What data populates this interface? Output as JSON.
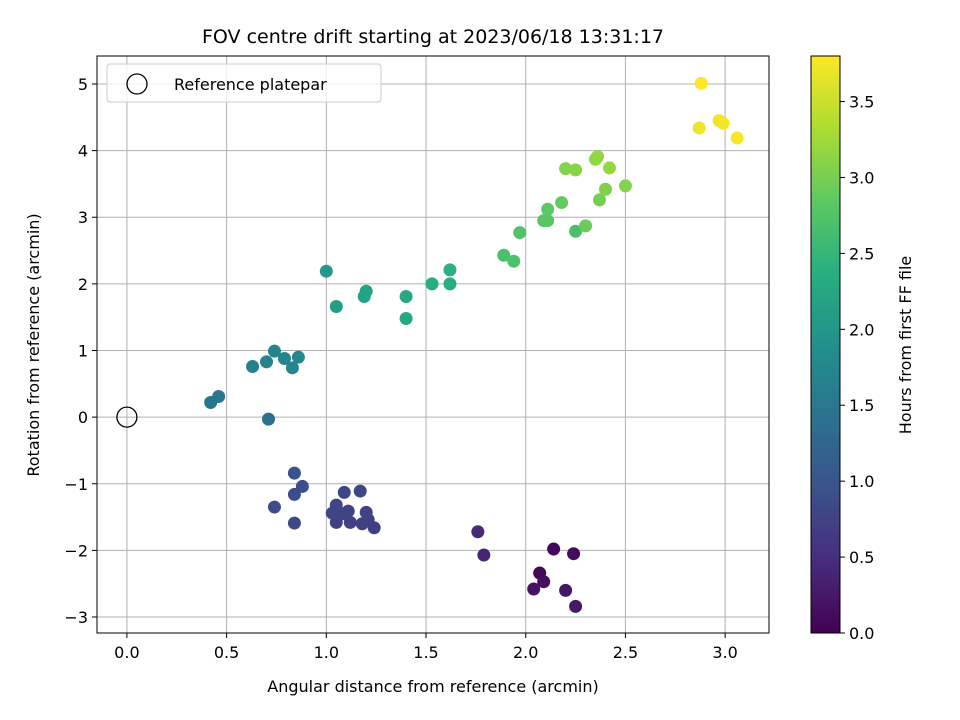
{
  "chart_data": {
    "type": "scatter",
    "title": "FOV centre drift starting at 2023/06/18 13:31:17",
    "xlabel": "Angular distance from reference (arcmin)",
    "ylabel": "Rotation from reference (arcmin)",
    "xlim": [
      -0.15,
      3.22
    ],
    "ylim": [
      -3.24,
      5.42
    ],
    "xticks": [
      0.0,
      0.5,
      1.0,
      1.5,
      2.0,
      2.5,
      3.0
    ],
    "xtick_labels": [
      "0.0",
      "0.5",
      "1.0",
      "1.5",
      "2.0",
      "2.5",
      "3.0"
    ],
    "yticks": [
      -3,
      -2,
      -1,
      0,
      1,
      2,
      3,
      4,
      5
    ],
    "ytick_labels": [
      "−3",
      "−2",
      "−1",
      "0",
      "1",
      "2",
      "3",
      "4",
      "5"
    ],
    "grid": true,
    "legend": {
      "label": "Reference platepar",
      "position": "upper left"
    },
    "reference_point": {
      "x": 0.0,
      "y": 0.0
    },
    "colorbar": {
      "label": "Hours from first FF file",
      "colormap": "viridis",
      "range": [
        0.0,
        3.8
      ],
      "ticks": [
        0.0,
        0.5,
        1.0,
        1.5,
        2.0,
        2.5,
        3.0,
        3.5
      ],
      "tick_labels": [
        "0.0",
        "0.5",
        "1.0",
        "1.5",
        "2.0",
        "2.5",
        "3.0",
        "3.5"
      ]
    },
    "points": [
      {
        "x": 2.07,
        "y": -2.34,
        "c": 0.05
      },
      {
        "x": 2.14,
        "y": -1.98,
        "c": 0.08
      },
      {
        "x": 2.24,
        "y": -2.05,
        "c": 0.12
      },
      {
        "x": 2.09,
        "y": -2.47,
        "c": 0.15
      },
      {
        "x": 2.04,
        "y": -2.58,
        "c": 0.2
      },
      {
        "x": 2.2,
        "y": -2.6,
        "c": 0.22
      },
      {
        "x": 2.25,
        "y": -2.84,
        "c": 0.25
      },
      {
        "x": 1.79,
        "y": -2.07,
        "c": 0.4
      },
      {
        "x": 1.76,
        "y": -1.72,
        "c": 0.45
      },
      {
        "x": 1.24,
        "y": -1.66,
        "c": 0.7
      },
      {
        "x": 1.18,
        "y": -1.6,
        "c": 0.72
      },
      {
        "x": 1.12,
        "y": -1.58,
        "c": 0.73
      },
      {
        "x": 1.05,
        "y": -1.58,
        "c": 0.74
      },
      {
        "x": 1.21,
        "y": -1.54,
        "c": 0.75
      },
      {
        "x": 1.2,
        "y": -1.43,
        "c": 0.76
      },
      {
        "x": 1.11,
        "y": -1.41,
        "c": 0.77
      },
      {
        "x": 1.08,
        "y": -1.45,
        "c": 0.78
      },
      {
        "x": 1.03,
        "y": -1.44,
        "c": 0.79
      },
      {
        "x": 1.05,
        "y": -1.32,
        "c": 0.8
      },
      {
        "x": 1.09,
        "y": -1.13,
        "c": 0.82
      },
      {
        "x": 1.17,
        "y": -1.11,
        "c": 0.83
      },
      {
        "x": 0.84,
        "y": -1.59,
        "c": 0.85
      },
      {
        "x": 0.74,
        "y": -1.35,
        "c": 0.88
      },
      {
        "x": 0.84,
        "y": -1.16,
        "c": 0.9
      },
      {
        "x": 0.88,
        "y": -1.04,
        "c": 0.92
      },
      {
        "x": 0.84,
        "y": -0.84,
        "c": 0.95
      },
      {
        "x": 0.71,
        "y": -0.03,
        "c": 1.4
      },
      {
        "x": 0.42,
        "y": 0.22,
        "c": 1.5
      },
      {
        "x": 0.46,
        "y": 0.31,
        "c": 1.52
      },
      {
        "x": 0.63,
        "y": 0.76,
        "c": 1.65
      },
      {
        "x": 0.7,
        "y": 0.83,
        "c": 1.68
      },
      {
        "x": 0.74,
        "y": 0.99,
        "c": 1.7
      },
      {
        "x": 0.79,
        "y": 0.88,
        "c": 1.72
      },
      {
        "x": 0.83,
        "y": 0.74,
        "c": 1.74
      },
      {
        "x": 0.86,
        "y": 0.9,
        "c": 1.76
      },
      {
        "x": 1.0,
        "y": 2.19,
        "c": 2.05
      },
      {
        "x": 1.05,
        "y": 1.66,
        "c": 2.15
      },
      {
        "x": 1.19,
        "y": 1.81,
        "c": 2.2
      },
      {
        "x": 1.2,
        "y": 1.89,
        "c": 2.22
      },
      {
        "x": 1.4,
        "y": 1.48,
        "c": 2.3
      },
      {
        "x": 1.4,
        "y": 1.81,
        "c": 2.32
      },
      {
        "x": 1.53,
        "y": 2.0,
        "c": 2.38
      },
      {
        "x": 1.62,
        "y": 2.0,
        "c": 2.4
      },
      {
        "x": 1.62,
        "y": 2.21,
        "c": 2.42
      },
      {
        "x": 1.89,
        "y": 2.43,
        "c": 2.7
      },
      {
        "x": 1.94,
        "y": 2.34,
        "c": 2.72
      },
      {
        "x": 1.97,
        "y": 2.77,
        "c": 2.75
      },
      {
        "x": 2.09,
        "y": 2.95,
        "c": 2.8
      },
      {
        "x": 2.11,
        "y": 2.95,
        "c": 2.82
      },
      {
        "x": 2.11,
        "y": 3.12,
        "c": 2.85
      },
      {
        "x": 2.18,
        "y": 3.22,
        "c": 2.9
      },
      {
        "x": 2.25,
        "y": 2.79,
        "c": 2.7
      },
      {
        "x": 2.3,
        "y": 2.87,
        "c": 2.95
      },
      {
        "x": 2.37,
        "y": 3.26,
        "c": 3.0
      },
      {
        "x": 2.4,
        "y": 3.42,
        "c": 3.05
      },
      {
        "x": 2.5,
        "y": 3.47,
        "c": 3.08
      },
      {
        "x": 2.2,
        "y": 3.73,
        "c": 3.1
      },
      {
        "x": 2.25,
        "y": 3.71,
        "c": 3.12
      },
      {
        "x": 2.35,
        "y": 3.87,
        "c": 3.15
      },
      {
        "x": 2.36,
        "y": 3.91,
        "c": 3.18
      },
      {
        "x": 2.42,
        "y": 3.74,
        "c": 3.2
      },
      {
        "x": 2.87,
        "y": 4.34,
        "c": 3.7
      },
      {
        "x": 2.97,
        "y": 4.45,
        "c": 3.72
      },
      {
        "x": 2.99,
        "y": 4.41,
        "c": 3.74
      },
      {
        "x": 3.06,
        "y": 4.19,
        "c": 3.76
      },
      {
        "x": 2.88,
        "y": 5.01,
        "c": 3.8
      }
    ]
  }
}
